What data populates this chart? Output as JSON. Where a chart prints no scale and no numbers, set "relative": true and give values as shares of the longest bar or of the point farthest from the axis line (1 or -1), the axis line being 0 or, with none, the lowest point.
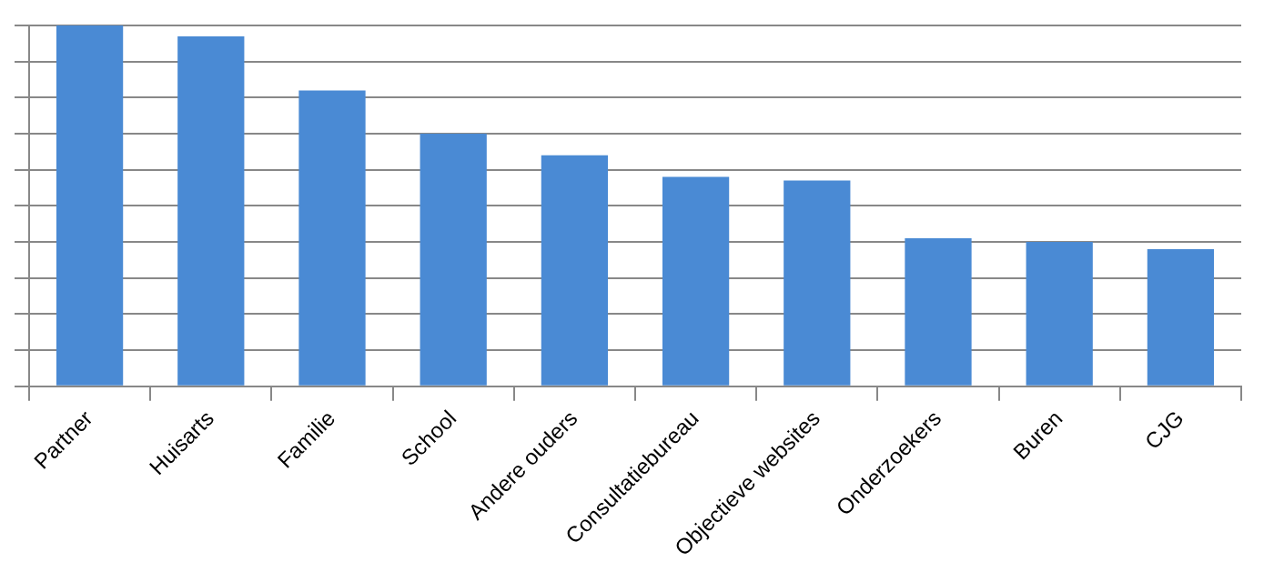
{
  "chart_data": {
    "type": "bar",
    "relative": true,
    "categories": [
      "Partner",
      "Huisarts",
      "Familie",
      "School",
      "Andere ouders",
      "Consultatiebureau",
      "Objectieve websites",
      "Onderzoekers",
      "Buren",
      "CJG"
    ],
    "values": [
      1,
      0.97,
      0.82,
      0.7,
      0.64,
      0.58,
      0.57,
      0.41,
      0.4,
      0.38
    ],
    "color": "#4a8ad4",
    "grid": true
  }
}
